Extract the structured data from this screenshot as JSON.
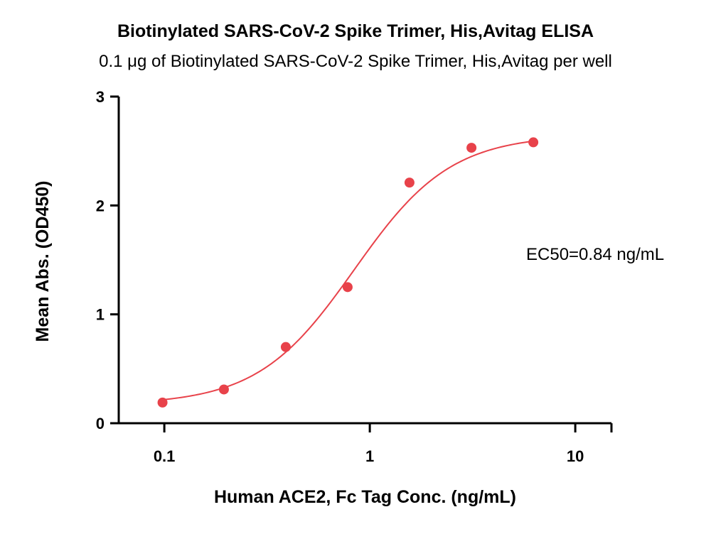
{
  "chart_data": {
    "type": "scatter",
    "title": "Biotinylated SARS-CoV-2 Spike Trimer, His,Avitag ELISA",
    "subtitle": "0.1 μg of Biotinylated SARS-CoV-2 Spike Trimer, His,Avitag per well",
    "xlabel": "Human ACE2, Fc Tag Conc. (ng/mL)",
    "ylabel": "Mean Abs. (OD450)",
    "x_scale": "log",
    "xlim": [
      0.06,
      15
    ],
    "ylim": [
      0,
      3
    ],
    "x_ticks": [
      0.1,
      1,
      10
    ],
    "x_tick_labels": [
      "0.1",
      "1",
      "10"
    ],
    "y_ticks": [
      0,
      1,
      2,
      3
    ],
    "y_tick_labels": [
      "0",
      "1",
      "2",
      "3"
    ],
    "grid": false,
    "color": "#e8424a",
    "series": [
      {
        "x": [
          0.098,
          0.195,
          0.39,
          0.78,
          1.56,
          3.125,
          6.25
        ],
        "y": [
          0.19,
          0.31,
          0.7,
          1.25,
          2.21,
          2.53,
          2.58
        ]
      }
    ],
    "fit": {
      "model": "4PL",
      "bottom": 0.17,
      "top": 2.65,
      "ec50": 0.84,
      "hill": 1.85,
      "x_range": [
        0.098,
        6.25
      ]
    },
    "annotation": "EC50=0.84 ng/mL"
  }
}
